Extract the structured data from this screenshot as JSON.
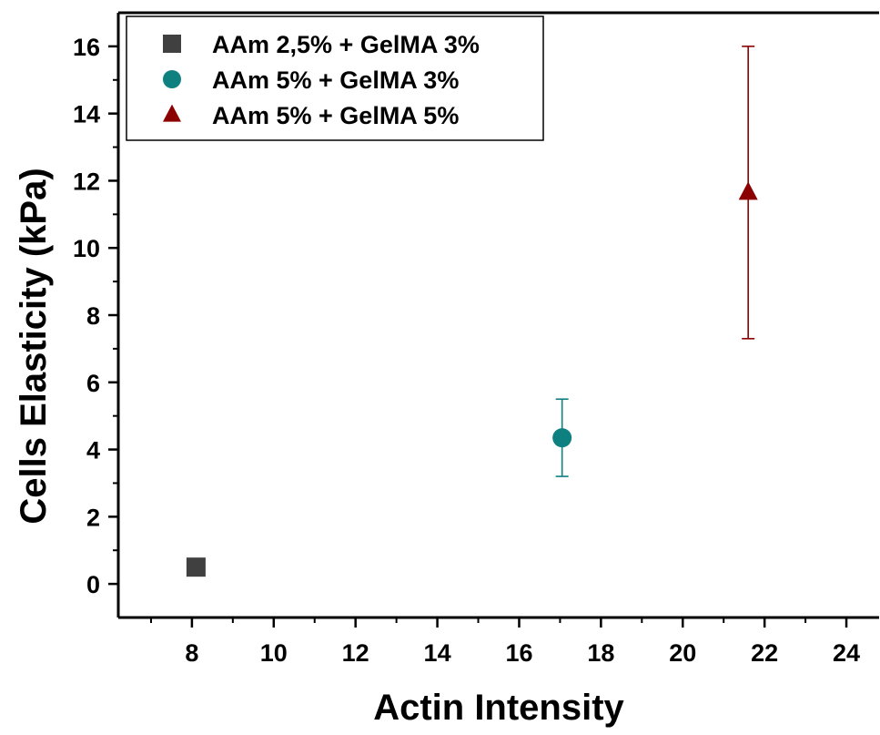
{
  "chart_data": {
    "type": "scatter",
    "xlabel": "Actin Intensity",
    "ylabel": "Cells Elasticity (kPa)",
    "xlim": [
      6.2,
      24.8
    ],
    "ylim": [
      -1.0,
      17.0
    ],
    "x_ticks": [
      8,
      10,
      12,
      14,
      16,
      18,
      20,
      22,
      24
    ],
    "y_ticks": [
      0,
      2,
      4,
      6,
      8,
      10,
      12,
      14,
      16
    ],
    "grid": false,
    "legend_position": "top-left",
    "series": [
      {
        "name": "AAm 2,5% + GelMA 3%",
        "marker": "square",
        "color": "#404040",
        "points": [
          {
            "x": 8.1,
            "y": 0.5,
            "err_low": 0.0,
            "err_high": 0.0
          }
        ]
      },
      {
        "name": "AAm 5% + GelMA 3%",
        "marker": "circle",
        "color": "#0e8080",
        "points": [
          {
            "x": 17.05,
            "y": 4.35,
            "err_low": 1.15,
            "err_high": 1.15
          }
        ]
      },
      {
        "name": "AAm 5% + GelMA 5%",
        "marker": "triangle",
        "color": "#8b0000",
        "points": [
          {
            "x": 21.6,
            "y": 11.65,
            "err_low": 4.35,
            "err_high": 4.35
          }
        ]
      }
    ]
  }
}
